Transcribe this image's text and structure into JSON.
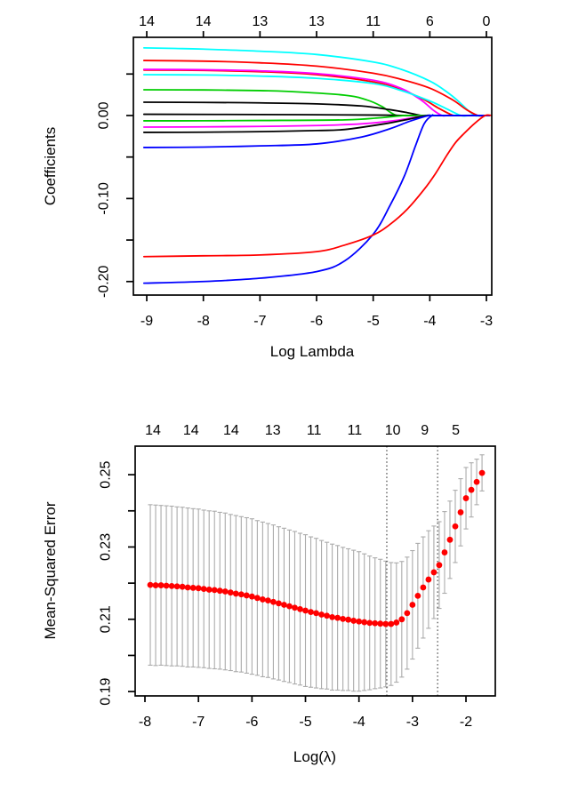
{
  "figure": {
    "background": "#ffffff",
    "accent_point_color": "#FF0000",
    "errorbar_color": "#ABABAB",
    "frame_color": "#000000"
  },
  "chart_data": [
    {
      "type": "line",
      "title": "",
      "xlabel": "Log Lambda",
      "ylabel": "Coefficients",
      "xlim": [
        -9.236,
        -2.906
      ],
      "ylim": [
        -0.2163,
        0.0942
      ],
      "grid": false,
      "x_ticks": [
        -9,
        -8,
        -7,
        -6,
        -5,
        -4,
        -3
      ],
      "x_tick_labels": [
        "-9",
        "-8",
        "-7",
        "-6",
        "-5",
        "-4",
        "-3"
      ],
      "y_ticks": [
        0.05,
        0,
        -0.05,
        -0.1,
        -0.15,
        -0.2
      ],
      "y_labeled_ticks": [
        {
          "v": 0,
          "label": "0.00"
        },
        {
          "v": -0.1,
          "label": "-0.10"
        },
        {
          "v": -0.2,
          "label": "-0.20"
        }
      ],
      "top_axis": {
        "positions": [
          -9,
          -8,
          -7,
          -6,
          -5,
          -4,
          -3
        ],
        "labels": [
          "14",
          "14",
          "13",
          "13",
          "11",
          "6",
          "0"
        ]
      },
      "series": [
        {
          "name": "coef-cyan-1",
          "color": "#00FFFF",
          "points": [
            [
              -9.05,
              0.0815
            ],
            [
              -8.5,
              0.0808
            ],
            [
              -8,
              0.08
            ],
            [
              -7,
              0.0775
            ],
            [
              -6,
              0.0735
            ],
            [
              -5,
              0.0645
            ],
            [
              -4.5,
              0.0555
            ],
            [
              -4,
              0.0415
            ],
            [
              -3.7,
              0.0285
            ],
            [
              -3.5,
              0.0175
            ],
            [
              -3.32,
              0.006
            ],
            [
              -3.2,
              0
            ],
            [
              -3.1,
              0
            ],
            [
              -2.95,
              0
            ]
          ]
        },
        {
          "name": "coef-red-1",
          "color": "#FF0000",
          "points": [
            [
              -9.05,
              0.0663
            ],
            [
              -8,
              0.0655
            ],
            [
              -7,
              0.0635
            ],
            [
              -6,
              0.0595
            ],
            [
              -5,
              0.051
            ],
            [
              -4.5,
              0.0435
            ],
            [
              -4,
              0.033
            ],
            [
              -3.6,
              0.019
            ],
            [
              -3.35,
              0.007
            ],
            [
              -3.15,
              0
            ],
            [
              -3.05,
              0
            ],
            [
              -2.95,
              0
            ]
          ]
        },
        {
          "name": "coef-red-2",
          "color": "#FF0000",
          "points": [
            [
              -9.05,
              0.0548
            ],
            [
              -8,
              0.0543
            ],
            [
              -7,
              0.0528
            ],
            [
              -6,
              0.0492
            ],
            [
              -5,
              0.0405
            ],
            [
              -4.5,
              0.031
            ],
            [
              -4.1,
              0.019
            ],
            [
              -3.85,
              0.009
            ],
            [
              -3.62,
              0.001
            ],
            [
              -3.5,
              0
            ],
            [
              -2.95,
              0
            ]
          ]
        },
        {
          "name": "coef-magenta-1",
          "color": "#FF00FF",
          "points": [
            [
              -9.05,
              0.0556
            ],
            [
              -8,
              0.0552
            ],
            [
              -7,
              0.0538
            ],
            [
              -6,
              0.0505
            ],
            [
              -5,
              0.0425
            ],
            [
              -4.5,
              0.0325
            ],
            [
              -4.15,
              0.0185
            ],
            [
              -3.93,
              0.006
            ],
            [
              -3.78,
              0
            ],
            [
              -3.65,
              0
            ],
            [
              -2.95,
              0
            ]
          ]
        },
        {
          "name": "coef-cyan-2",
          "color": "#00FFFF",
          "points": [
            [
              -9.05,
              0.0492
            ],
            [
              -8,
              0.0488
            ],
            [
              -7,
              0.0475
            ],
            [
              -6,
              0.0448
            ],
            [
              -5,
              0.0385
            ],
            [
              -4.5,
              0.03
            ],
            [
              -4,
              0.0175
            ],
            [
              -3.7,
              0.008
            ],
            [
              -3.45,
              0
            ],
            [
              -3.3,
              0
            ],
            [
              -2.95,
              0
            ]
          ]
        },
        {
          "name": "coef-green-1",
          "color": "#00CD00",
          "points": [
            [
              -9.05,
              0.031
            ],
            [
              -8,
              0.0308
            ],
            [
              -7,
              0.03
            ],
            [
              -6.5,
              0.029
            ],
            [
              -5.5,
              0.0245
            ],
            [
              -5.1,
              0.0185
            ],
            [
              -4.85,
              0.011
            ],
            [
              -4.7,
              0.004
            ],
            [
              -4.58,
              0
            ],
            [
              -4.4,
              0
            ],
            [
              -2.95,
              0
            ]
          ]
        },
        {
          "name": "coef-black-1",
          "color": "#000000",
          "points": [
            [
              -9.05,
              0.016
            ],
            [
              -8,
              0.0158
            ],
            [
              -7,
              0.0152
            ],
            [
              -6,
              0.014
            ],
            [
              -5.2,
              0.0115
            ],
            [
              -4.7,
              0.007
            ],
            [
              -4.4,
              0.0035
            ],
            [
              -4.15,
              0
            ],
            [
              -4,
              0
            ],
            [
              -2.95,
              0
            ]
          ]
        },
        {
          "name": "coef-black-2",
          "color": "#000000",
          "points": [
            [
              -9.05,
              0.0015
            ],
            [
              -7,
              0.0012
            ],
            [
              -5,
              0.0006
            ],
            [
              -4.3,
              0
            ],
            [
              -2.95,
              0
            ]
          ]
        },
        {
          "name": "coef-green-2",
          "color": "#00CD00",
          "points": [
            [
              -9.05,
              -0.0064
            ],
            [
              -8,
              -0.0063
            ],
            [
              -7,
              -0.006
            ],
            [
              -5.5,
              -0.0052
            ],
            [
              -4.9,
              -0.0028
            ],
            [
              -4.45,
              0
            ],
            [
              -4.3,
              0
            ],
            [
              -2.95,
              0
            ]
          ]
        },
        {
          "name": "coef-magenta-2",
          "color": "#FF00FF",
          "points": [
            [
              -9.05,
              -0.0139
            ],
            [
              -8,
              -0.0137
            ],
            [
              -7,
              -0.0131
            ],
            [
              -6,
              -0.0121
            ],
            [
              -5.2,
              -0.01
            ],
            [
              -4.6,
              -0.006
            ],
            [
              -4.25,
              -0.002
            ],
            [
              -4,
              0
            ],
            [
              -3.9,
              0
            ],
            [
              -2.95,
              0
            ]
          ]
        },
        {
          "name": "coef-black-3",
          "color": "#000000",
          "points": [
            [
              -9.05,
              -0.0203
            ],
            [
              -8,
              -0.0201
            ],
            [
              -7,
              -0.0194
            ],
            [
              -6,
              -0.0181
            ],
            [
              -5.5,
              -0.0168
            ],
            [
              -4.8,
              -0.01
            ],
            [
              -4.4,
              -0.0048
            ],
            [
              -4.05,
              0
            ],
            [
              -3.95,
              0
            ],
            [
              -2.95,
              0
            ]
          ]
        },
        {
          "name": "coef-blue-1",
          "color": "#0000FF",
          "points": [
            [
              -9.05,
              -0.0385
            ],
            [
              -8,
              -0.038
            ],
            [
              -7,
              -0.0366
            ],
            [
              -6,
              -0.0342
            ],
            [
              -5.2,
              -0.0258
            ],
            [
              -4.7,
              -0.0158
            ],
            [
              -4.35,
              -0.0068
            ],
            [
              -4.02,
              0
            ],
            [
              -3.92,
              0
            ],
            [
              -2.95,
              0
            ]
          ]
        },
        {
          "name": "coef-blue-2",
          "color": "#0000FF",
          "points": [
            [
              -9.05,
              -0.202
            ],
            [
              -8,
              -0.2
            ],
            [
              -7,
              -0.196
            ],
            [
              -6,
              -0.188
            ],
            [
              -5.5,
              -0.175
            ],
            [
              -5,
              -0.143
            ],
            [
              -4.7,
              -0.108
            ],
            [
              -4.45,
              -0.073
            ],
            [
              -4.25,
              -0.036
            ],
            [
              -4.1,
              -0.01
            ],
            [
              -3.96,
              0
            ],
            [
              -3.85,
              0
            ],
            [
              -2.95,
              0
            ]
          ]
        },
        {
          "name": "coef-red-3",
          "color": "#FF0000",
          "points": [
            [
              -9.05,
              -0.17
            ],
            [
              -8,
              -0.169
            ],
            [
              -7,
              -0.168
            ],
            [
              -6,
              -0.164
            ],
            [
              -5.5,
              -0.156
            ],
            [
              -5,
              -0.144
            ],
            [
              -4.7,
              -0.131
            ],
            [
              -4.4,
              -0.113
            ],
            [
              -4.1,
              -0.089
            ],
            [
              -3.9,
              -0.07
            ],
            [
              -3.7,
              -0.048
            ],
            [
              -3.55,
              -0.033
            ],
            [
              -3.4,
              -0.022
            ],
            [
              -3.2,
              -0.009
            ],
            [
              -3.02,
              0
            ],
            [
              -2.91,
              0
            ]
          ]
        }
      ]
    },
    {
      "type": "scatter",
      "title": "",
      "xlabel": "Log(λ)",
      "ylabel": "Mean-Squared Error",
      "xlim": [
        -8.183,
        -1.452
      ],
      "ylim": [
        0.1888,
        0.2579
      ],
      "grid": false,
      "x_ticks": [
        -8,
        -7,
        -6,
        -5,
        -4,
        -3,
        -2
      ],
      "x_tick_labels": [
        "-8",
        "-7",
        "-6",
        "-5",
        "-4",
        "-3",
        "-2"
      ],
      "y_ticks": [
        0.19,
        0.2,
        0.21,
        0.22,
        0.23,
        0.24,
        0.25
      ],
      "y_labeled_ticks": [
        {
          "v": 0.19,
          "label": "0.19"
        },
        {
          "v": 0.21,
          "label": "0.21"
        },
        {
          "v": 0.23,
          "label": "0.23"
        },
        {
          "v": 0.25,
          "label": "0.25"
        }
      ],
      "top_axis": {
        "positions": [
          -7.85,
          -7.14,
          -6.39,
          -5.61,
          -4.84,
          -4.08,
          -3.37,
          -2.77,
          -2.19
        ],
        "labels": [
          "14",
          "14",
          "14",
          "13",
          "11",
          "11",
          "10",
          "9",
          "5"
        ]
      },
      "vlines": [
        -3.48,
        -2.53
      ],
      "point_color": "#FF0000",
      "bar_color": "#ABABAB",
      "points": [
        [
          -7.9,
          0.2195,
          0.0222
        ],
        [
          -7.8,
          0.2194,
          0.0222
        ],
        [
          -7.7,
          0.2194,
          0.0221
        ],
        [
          -7.6,
          0.2193,
          0.0221
        ],
        [
          -7.5,
          0.2192,
          0.0221
        ],
        [
          -7.4,
          0.2191,
          0.022
        ],
        [
          -7.3,
          0.219,
          0.022
        ],
        [
          -7.2,
          0.2188,
          0.022
        ],
        [
          -7.1,
          0.2187,
          0.0219
        ],
        [
          -7.0,
          0.2186,
          0.0219
        ],
        [
          -6.9,
          0.2184,
          0.0218
        ],
        [
          -6.8,
          0.2182,
          0.0218
        ],
        [
          -6.7,
          0.2181,
          0.0218
        ],
        [
          -6.6,
          0.2179,
          0.0217
        ],
        [
          -6.5,
          0.2177,
          0.0217
        ],
        [
          -6.4,
          0.2174,
          0.0216
        ],
        [
          -6.3,
          0.2171,
          0.0216
        ],
        [
          -6.2,
          0.2169,
          0.0215
        ],
        [
          -6.1,
          0.2166,
          0.0215
        ],
        [
          -6.0,
          0.2163,
          0.0215
        ],
        [
          -5.9,
          0.2159,
          0.0214
        ],
        [
          -5.8,
          0.2155,
          0.0214
        ],
        [
          -5.7,
          0.2152,
          0.0213
        ],
        [
          -5.6,
          0.2148,
          0.0213
        ],
        [
          -5.5,
          0.2144,
          0.0212
        ],
        [
          -5.4,
          0.214,
          0.0212
        ],
        [
          -5.3,
          0.2136,
          0.0211
        ],
        [
          -5.2,
          0.2132,
          0.0211
        ],
        [
          -5.1,
          0.2128,
          0.021
        ],
        [
          -5.0,
          0.2124,
          0.021
        ],
        [
          -4.9,
          0.212,
          0.0208
        ],
        [
          -4.8,
          0.2117,
          0.0207
        ],
        [
          -4.7,
          0.2113,
          0.0205
        ],
        [
          -4.6,
          0.211,
          0.0203
        ],
        [
          -4.5,
          0.2106,
          0.0202
        ],
        [
          -4.4,
          0.2104,
          0.02
        ],
        [
          -4.3,
          0.2101,
          0.0198
        ],
        [
          -4.2,
          0.2099,
          0.0196
        ],
        [
          -4.1,
          0.2096,
          0.0195
        ],
        [
          -4.0,
          0.2094,
          0.0193
        ],
        [
          -3.9,
          0.2092,
          0.0189
        ],
        [
          -3.8,
          0.209,
          0.0185
        ],
        [
          -3.7,
          0.2089,
          0.0181
        ],
        [
          -3.6,
          0.2088,
          0.0178
        ],
        [
          -3.5,
          0.2087,
          0.0174
        ],
        [
          -3.4,
          0.2087,
          0.017
        ],
        [
          -3.3,
          0.2091,
          0.0165
        ],
        [
          -3.2,
          0.21,
          0.016
        ],
        [
          -3.1,
          0.2117,
          0.0155
        ],
        [
          -3.0,
          0.214,
          0.015
        ],
        [
          -2.9,
          0.2165,
          0.0145
        ],
        [
          -2.8,
          0.2188,
          0.014
        ],
        [
          -2.7,
          0.221,
          0.0135
        ],
        [
          -2.6,
          0.223,
          0.0128
        ],
        [
          -2.5,
          0.225,
          0.012
        ],
        [
          -2.4,
          0.2285,
          0.0113
        ],
        [
          -2.3,
          0.232,
          0.0107
        ],
        [
          -2.2,
          0.2357,
          0.01
        ],
        [
          -2.1,
          0.2396,
          0.0093
        ],
        [
          -2.0,
          0.2435,
          0.0085
        ],
        [
          -1.9,
          0.2458,
          0.0075
        ],
        [
          -1.8,
          0.248,
          0.0063
        ],
        [
          -1.7,
          0.2505,
          0.005
        ]
      ]
    }
  ]
}
